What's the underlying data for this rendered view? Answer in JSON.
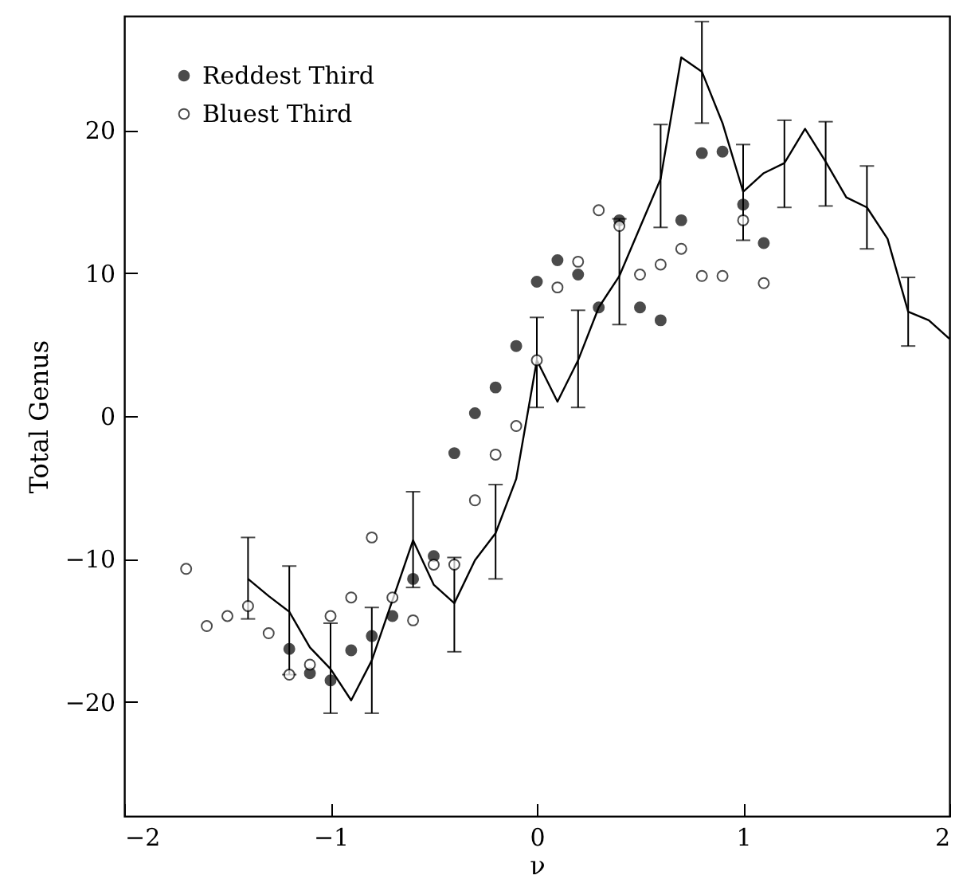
{
  "chart_data": {
    "type": "scatter",
    "xlabel": "ν",
    "ylabel": "Total Genus",
    "xlim": [
      -2,
      2
    ],
    "ylim": [
      -28,
      28
    ],
    "xticks": [
      -2,
      -1,
      0,
      1,
      2
    ],
    "yticks": [
      -20,
      -10,
      0,
      10,
      20
    ],
    "grid": false,
    "legend": "top left",
    "marker": "circle",
    "series": [
      {
        "type": "line",
        "marker": "none",
        "line_style": "solid",
        "color": "#000000",
        "x": [
          -1.4,
          -1.3,
          -1.2,
          -1.1,
          -1.0,
          -0.9,
          -0.8,
          -0.7,
          -0.6,
          -0.5,
          -0.4,
          -0.3,
          -0.2,
          -0.1,
          0,
          0.1,
          0.2,
          0.3,
          0.4,
          0.5,
          0.6,
          0.7,
          0.8,
          0.9,
          1.0,
          1.1,
          1.2,
          1.3,
          1.4,
          1.5,
          1.6,
          1.7,
          1.8,
          1.9,
          2.0
        ],
        "values": [
          -11.4,
          -12.6,
          -13.7,
          -16.2,
          -17.7,
          -19.9,
          -17.1,
          -12.9,
          -8.7,
          -11.8,
          -13.1,
          -10.1,
          -8.2,
          -4.4,
          3.9,
          1.0,
          3.9,
          7.6,
          9.8,
          13.2,
          16.6,
          25.1,
          24.1,
          20.5,
          15.7,
          17.0,
          17.7,
          20.1,
          17.8,
          15.3,
          14.6,
          12.4,
          7.3,
          6.7,
          5.4
        ],
        "errors": [
          [
            -14.2,
            -8.5
          ],
          null,
          [
            -18.1,
            -10.5
          ],
          null,
          [
            -20.8,
            -14.5
          ],
          null,
          [
            -20.8,
            -13.4
          ],
          null,
          [
            -12.0,
            -5.3
          ],
          null,
          [
            -16.5,
            -9.9
          ],
          null,
          [
            -11.4,
            -4.8
          ],
          null,
          [
            0.6,
            6.9
          ],
          null,
          [
            0.6,
            7.4
          ],
          null,
          [
            6.4,
            13.8
          ],
          null,
          [
            13.2,
            20.4
          ],
          null,
          [
            20.5,
            27.6
          ],
          null,
          [
            12.3,
            19.0
          ],
          null,
          [
            14.6,
            20.7
          ],
          null,
          [
            14.7,
            20.6
          ],
          null,
          [
            11.7,
            17.5
          ],
          null,
          [
            4.9,
            9.7
          ],
          null,
          null
        ]
      },
      {
        "name": "Reddest Third",
        "color": "#000000",
        "x": [
          -1.2,
          -1.1,
          -1.0,
          -0.9,
          -0.8,
          -0.7,
          -0.6,
          -0.5,
          -0.4,
          -0.3,
          -0.2,
          -0.1,
          0,
          0.1,
          0.2,
          0.3,
          0.4,
          0.5,
          0.6,
          0.7,
          0.8,
          0.9,
          1.0,
          1.1
        ],
        "values": [
          -16.3,
          -18.0,
          -18.5,
          -16.4,
          -15.4,
          -14.0,
          -11.4,
          -9.8,
          -2.6,
          0.2,
          2.0,
          4.9,
          9.4,
          10.9,
          9.9,
          7.6,
          13.7,
          7.6,
          6.7,
          13.7,
          18.4,
          18.5,
          14.8,
          12.1
        ]
      },
      {
        "name": "Bluest Third",
        "color": "#000000",
        "x": [
          -1.7,
          -1.6,
          -1.5,
          -1.4,
          -1.3,
          -1.2,
          -1.1,
          -1.0,
          -0.9,
          -0.8,
          -0.7,
          -0.6,
          -0.5,
          -0.4,
          -0.3,
          -0.2,
          -0.1,
          0,
          0.1,
          0.2,
          0.3,
          0.4,
          0.5,
          0.6,
          0.7,
          0.8,
          0.9,
          1.0,
          1.1
        ],
        "values": [
          -10.7,
          -14.7,
          -14.0,
          -13.3,
          -15.2,
          -18.1,
          -17.4,
          -14.0,
          -12.7,
          -8.5,
          -12.7,
          -14.3,
          -10.4,
          -10.4,
          -5.9,
          -2.7,
          -0.7,
          3.9,
          9.0,
          10.8,
          14.4,
          13.3,
          9.9,
          10.6,
          11.7,
          9.8,
          9.8,
          13.7,
          9.3
        ]
      }
    ]
  }
}
